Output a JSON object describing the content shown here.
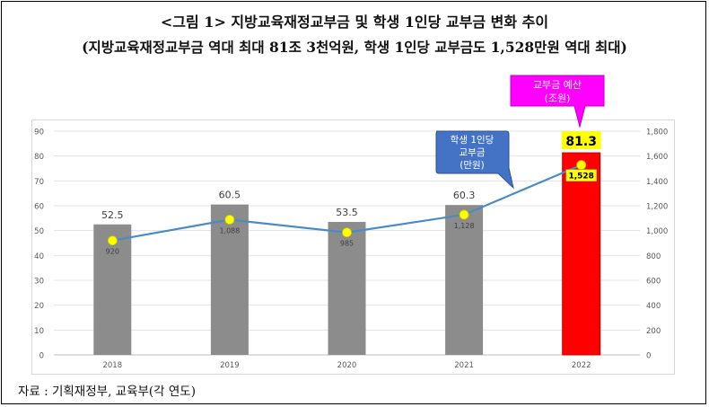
{
  "title": "<그림 1> 지방교육재정교부금 및 학생 1인당 교부금 변화 추이",
  "subtitle": "(지방교육재정교부금 역대 최대 81조 3천억원, 학생 1인당 교부금도 1,528만원 역대 최대)",
  "source": "자료 : 기획재정부, 교육부(각 연도)",
  "callouts": {
    "budget": [
      "교부금 예산",
      "(조원)"
    ],
    "per_student": [
      "학생 1인당",
      "교부금",
      "(만원)"
    ]
  },
  "colors": {
    "bar": "#8c8c8c",
    "bar_highlight": "#ff0000",
    "line": "#4a8bc2",
    "marker": "#ffff00",
    "callout_budget": "#ff00ff",
    "callout_per_student": "#4472c4",
    "label_box": "#ffff00"
  },
  "chart_data": {
    "type": "bar",
    "categories": [
      "2018",
      "2019",
      "2020",
      "2021",
      "2022"
    ],
    "series": [
      {
        "name": "교부금 예산",
        "type": "bar",
        "axis": "left",
        "values": [
          52.5,
          60.5,
          53.5,
          60.3,
          81.3
        ],
        "labels": [
          "52.5",
          "60.5",
          "53.5",
          "60.3",
          "81.3"
        ]
      },
      {
        "name": "학생 1인당 교부금",
        "type": "line",
        "axis": "right",
        "values": [
          920,
          1088,
          985,
          1128,
          1528
        ],
        "labels": [
          "920",
          "1,088",
          "985",
          "1,128",
          "1,528"
        ]
      }
    ],
    "ylim": [
      0,
      90
    ],
    "yticks": [
      "0",
      "10",
      "20",
      "30",
      "40",
      "50",
      "60",
      "70",
      "80",
      "90"
    ],
    "y2lim": [
      0,
      1800
    ],
    "y2ticks": [
      "0",
      "200",
      "400",
      "600",
      "800",
      "1,000",
      "1,200",
      "1,400",
      "1,600",
      "1,800"
    ],
    "highlight_category": "2022",
    "grid": true,
    "legend": "none"
  }
}
